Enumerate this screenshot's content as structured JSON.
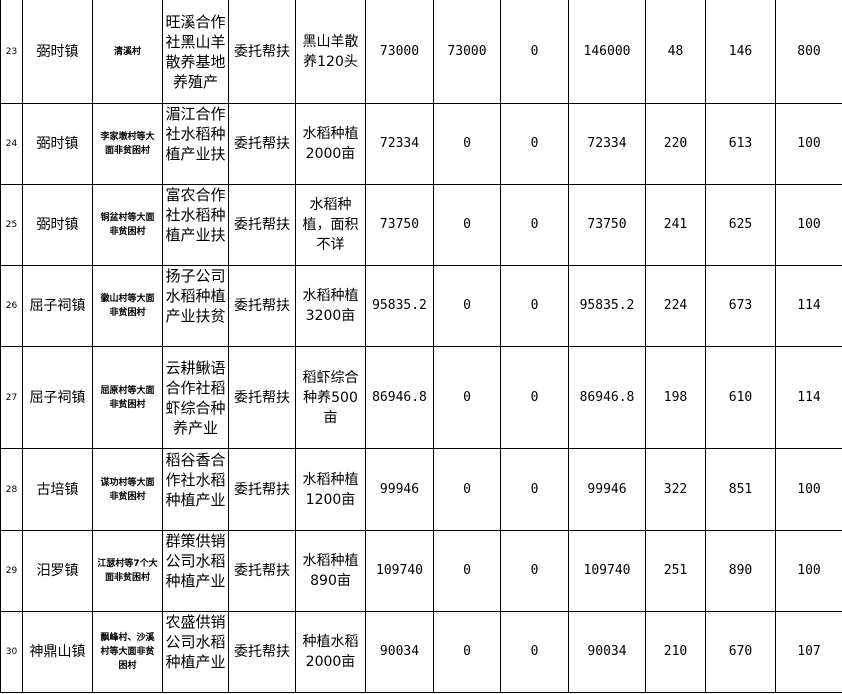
{
  "rows": [
    {
      "no": "23",
      "town": "弼时镇",
      "village": "清溪村",
      "project": "旺溪合作社黑山羊散养基地养殖产",
      "mode": "委托帮扶",
      "content": "黑山羊散养120头",
      "a": "73000",
      "b": "73000",
      "c": "0",
      "total": "146000",
      "d": "48",
      "e": "146",
      "f": "800"
    },
    {
      "no": "24",
      "town": "弼时镇",
      "village": "李家墩村等大面非贫困村",
      "project": "湄江合作社水稻种植产业扶",
      "mode": "委托帮扶",
      "content": "水稻种植2000亩",
      "a": "72334",
      "b": "0",
      "c": "0",
      "total": "72334",
      "d": "220",
      "e": "613",
      "f": "100"
    },
    {
      "no": "25",
      "town": "弼时镇",
      "village": "铜盆村等大面非贫困村",
      "project": "富农合作社水稻种植产业扶",
      "mode": "委托帮扶",
      "content": "水稻种植，面积不详",
      "a": "73750",
      "b": "0",
      "c": "0",
      "total": "73750",
      "d": "241",
      "e": "625",
      "f": "100"
    },
    {
      "no": "26",
      "town": "屈子祠镇",
      "village": "徽山村等大面非贫困村",
      "project": "扬子公司水稻种植产业扶贫",
      "mode": "委托帮扶",
      "content": "水稻种植3200亩",
      "a": "95835.2",
      "b": "0",
      "c": "0",
      "total": "95835.2",
      "d": "224",
      "e": "673",
      "f": "114"
    },
    {
      "no": "27",
      "town": "屈子祠镇",
      "village": "屈原村等大面非贫困村",
      "project": "云耕鳅语合作社稻虾综合种养产业",
      "mode": "委托帮扶",
      "content": "稻虾综合种养500亩",
      "a": "86946.8",
      "b": "0",
      "c": "0",
      "total": "86946.8",
      "d": "198",
      "e": "610",
      "f": "114"
    },
    {
      "no": "28",
      "town": "古培镇",
      "village": "谋功村等大面非贫困村",
      "project": "稻谷香合作社水稻种植产业",
      "mode": "委托帮扶",
      "content": "水稻种植1200亩",
      "a": "99946",
      "b": "0",
      "c": "0",
      "total": "99946",
      "d": "322",
      "e": "851",
      "f": "100"
    },
    {
      "no": "29",
      "town": "汨罗镇",
      "village": "江瑟村等7个大面非贫困村",
      "project": "群策供销公司水稻种植产业",
      "mode": "委托帮扶",
      "content": "水稻种植890亩",
      "a": "109740",
      "b": "0",
      "c": "0",
      "total": "109740",
      "d": "251",
      "e": "890",
      "f": "100"
    },
    {
      "no": "30",
      "town": "神鼎山镇",
      "village": "飘峰村、沙溪村等大面非贫困村",
      "project": "农盛供销公司水稻种植产业",
      "mode": "委托帮扶",
      "content": "种植水稻2000亩",
      "a": "90034",
      "b": "0",
      "c": "0",
      "total": "90034",
      "d": "210",
      "e": "670",
      "f": "107"
    }
  ]
}
